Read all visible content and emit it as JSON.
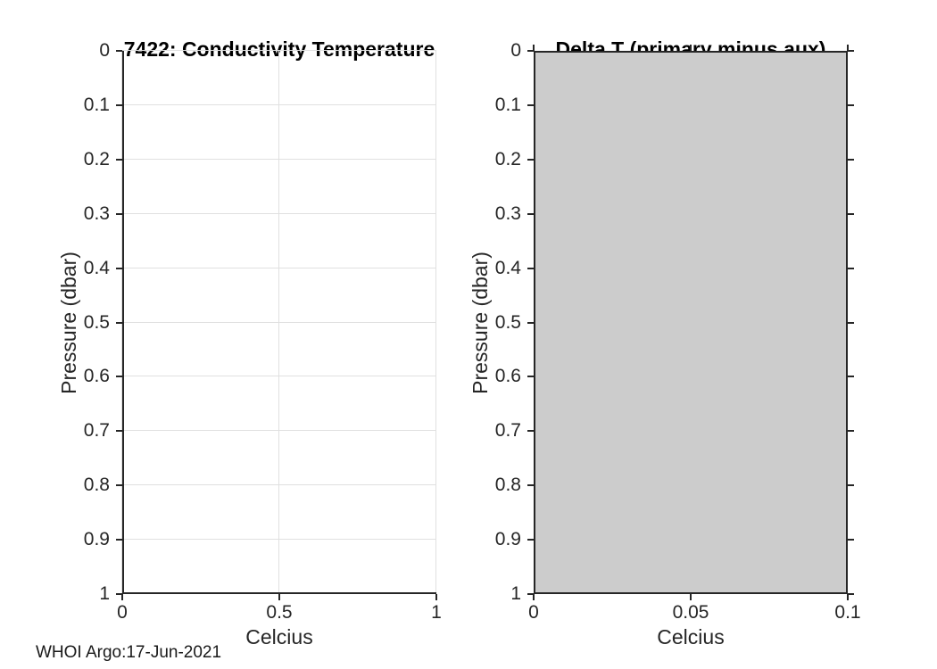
{
  "figure": {
    "note": "WHOI Argo:17-Jun-2021",
    "background": "#ffffff"
  },
  "colors": {
    "axis": "#262626",
    "grid": "#e0e0e0",
    "tick_text": "#262626",
    "title_text": "#000000",
    "fill": "#cccccc",
    "fill_edge": "#1a1a1a"
  },
  "chart_data": [
    {
      "type": "line",
      "title": "7422: Conductivity Temperature",
      "xlabel": "Celcius",
      "ylabel": "Pressure (dbar)",
      "xlim": [
        0,
        1
      ],
      "ylim": [
        0,
        1
      ],
      "ydir": "reverse",
      "xticks": [
        "0",
        "0.5",
        "1"
      ],
      "yticks": [
        "0",
        "0.1",
        "0.2",
        "0.3",
        "0.4",
        "0.5",
        "0.6",
        "0.7",
        "0.8",
        "0.9",
        "1"
      ],
      "grid": true,
      "box": false,
      "legend": null,
      "series": []
    },
    {
      "type": "area",
      "title": "Delta T (primary minus aux)",
      "xlabel": "Celcius",
      "ylabel": "Pressure (dbar)",
      "xlim": [
        0,
        0.1
      ],
      "ylim": [
        0,
        1
      ],
      "ydir": "reverse",
      "xticks": [
        "0",
        "0.05",
        "0.1"
      ],
      "yticks": [
        "0",
        "0.1",
        "0.2",
        "0.3",
        "0.4",
        "0.5",
        "0.6",
        "0.7",
        "0.8",
        "0.9",
        "1"
      ],
      "grid": false,
      "box": true,
      "legend": null,
      "series": [
        {
          "name": "delta-t-filled-region",
          "shape": "filled-rectangle",
          "x_range": [
            0,
            0.1
          ],
          "y_range": [
            0,
            1
          ]
        }
      ]
    }
  ]
}
